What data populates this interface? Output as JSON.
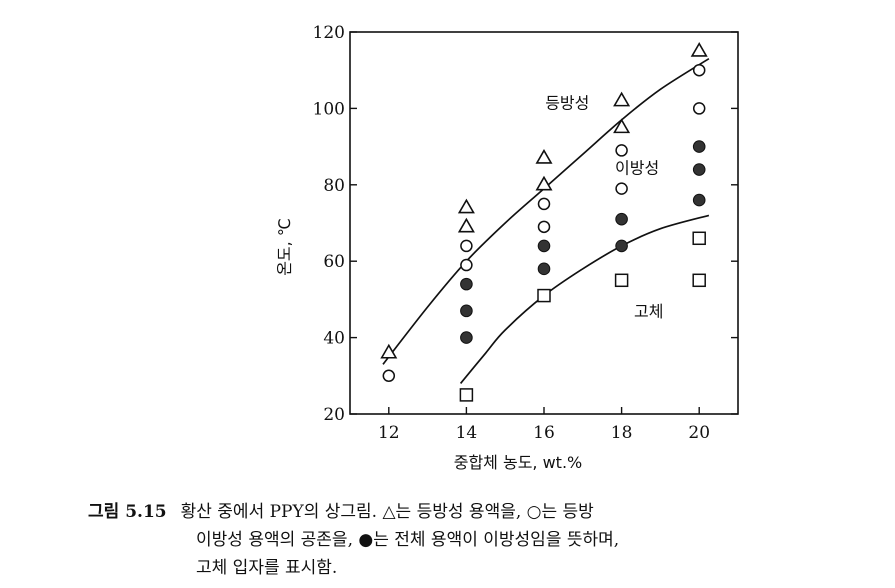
{
  "chart_data": {
    "type": "scatter",
    "xlabel": "중합체 농도, wt.%",
    "ylabel": "온도, ℃",
    "xlim": [
      11,
      21
    ],
    "ylim": [
      20,
      120
    ],
    "xticks": [
      12,
      14,
      16,
      18,
      20
    ],
    "yticks": [
      20,
      40,
      60,
      80,
      100,
      120
    ],
    "grid": false,
    "series": [
      {
        "marker": "triangle-open",
        "color": "#111111",
        "points": [
          [
            12,
            36
          ],
          [
            14,
            74
          ],
          [
            14,
            69
          ],
          [
            16,
            87
          ],
          [
            16,
            80
          ],
          [
            18,
            102
          ],
          [
            18,
            95
          ],
          [
            20,
            115
          ]
        ]
      },
      {
        "marker": "circle-open",
        "color": "#111111",
        "points": [
          [
            12,
            30
          ],
          [
            14,
            64
          ],
          [
            14,
            59
          ],
          [
            16,
            75
          ],
          [
            16,
            69
          ],
          [
            18,
            89
          ],
          [
            18,
            79
          ],
          [
            20,
            110
          ],
          [
            20,
            100
          ]
        ]
      },
      {
        "marker": "circle-filled",
        "color": "#333333",
        "points": [
          [
            14,
            54
          ],
          [
            14,
            47
          ],
          [
            14,
            40
          ],
          [
            16,
            64
          ],
          [
            16,
            58
          ],
          [
            18,
            71
          ],
          [
            18,
            64
          ],
          [
            20,
            90
          ],
          [
            20,
            84
          ],
          [
            20,
            76
          ]
        ]
      },
      {
        "marker": "square-open",
        "color": "#111111",
        "points": [
          [
            14,
            25
          ],
          [
            16,
            51
          ],
          [
            18,
            55
          ],
          [
            20,
            66
          ],
          [
            20,
            55
          ]
        ]
      }
    ],
    "boundaries": [
      {
        "points": [
          [
            11.85,
            33
          ],
          [
            13,
            48
          ],
          [
            14,
            60
          ],
          [
            15,
            70
          ],
          [
            16,
            79
          ],
          [
            17,
            88
          ],
          [
            18,
            97
          ],
          [
            19,
            105
          ],
          [
            20.25,
            113
          ]
        ]
      },
      {
        "points": [
          [
            13.85,
            28
          ],
          [
            14.5,
            36
          ],
          [
            15,
            42
          ],
          [
            16,
            51
          ],
          [
            17,
            58
          ],
          [
            18,
            64
          ],
          [
            19,
            68.5
          ],
          [
            20.25,
            72
          ]
        ]
      }
    ],
    "annotations": [
      {
        "text": "등방성",
        "x": 16.6,
        "y": 101.5
      },
      {
        "text": "이방성",
        "x": 18.4,
        "y": 84.5
      },
      {
        "text": "고체",
        "x": 18.7,
        "y": 47
      }
    ]
  },
  "caption": {
    "figure_number": "그림 5.15",
    "line1": "황산 중에서 PPY의 상그림. △는 등방성 용액을, ○는 등방",
    "line2": "이방성 용액의 공존을, ●는 전체 용액이 이방성임을 뜻하며,",
    "line3": "고체 입자를 표시함."
  }
}
